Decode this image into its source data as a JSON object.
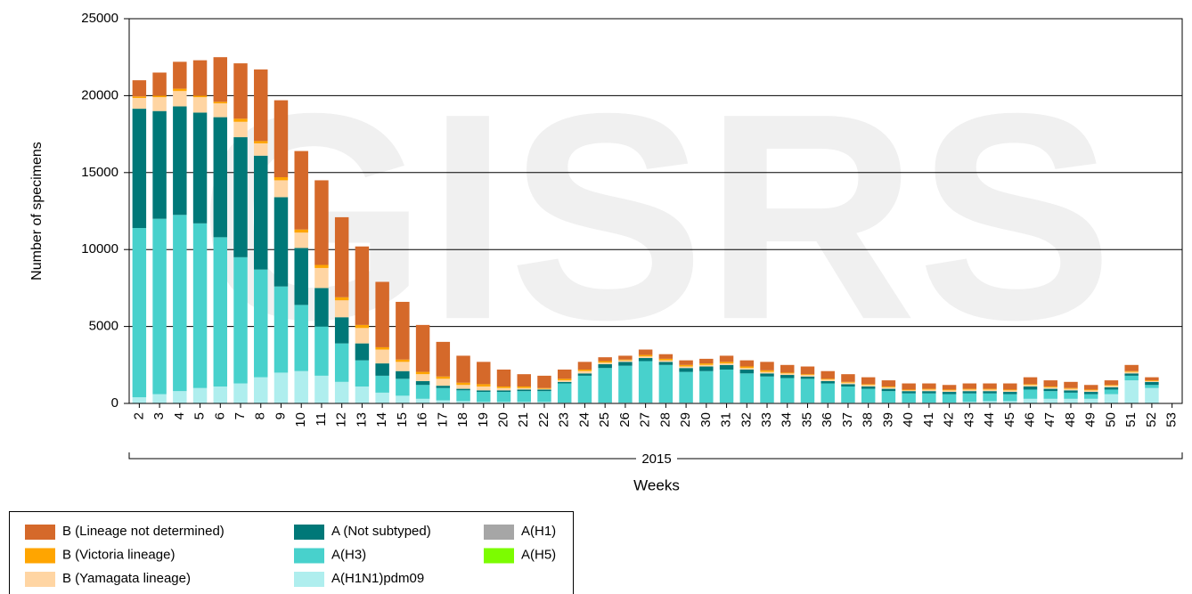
{
  "chart_data": {
    "type": "stacked_bar",
    "watermark": "GISRS",
    "ylabel": "Number of specimens",
    "xlabel": "Weeks",
    "x_group_label": "2015",
    "ylim": [
      0,
      25000
    ],
    "yticks": [
      0,
      5000,
      10000,
      15000,
      20000,
      25000
    ],
    "grid": true,
    "legend": "bottom-left",
    "categories": [
      "2",
      "3",
      "4",
      "5",
      "6",
      "7",
      "8",
      "9",
      "10",
      "11",
      "12",
      "13",
      "14",
      "15",
      "16",
      "17",
      "18",
      "19",
      "20",
      "21",
      "22",
      "23",
      "24",
      "25",
      "26",
      "27",
      "28",
      "29",
      "30",
      "31",
      "32",
      "33",
      "34",
      "35",
      "36",
      "37",
      "38",
      "39",
      "40",
      "41",
      "42",
      "43",
      "44",
      "45",
      "46",
      "47",
      "48",
      "49",
      "50",
      "51",
      "52",
      "53"
    ],
    "series": [
      {
        "name": "B (Lineage not determined)",
        "color": "#d5692a",
        "values": [
          1050,
          1500,
          1750,
          2300,
          2900,
          3600,
          4650,
          5000,
          5100,
          5500,
          5200,
          5100,
          4250,
          3750,
          3050,
          2250,
          1750,
          1450,
          1100,
          800,
          800,
          600,
          500,
          250,
          250,
          350,
          300,
          300,
          300,
          400,
          400,
          550,
          500,
          500,
          500,
          500,
          450,
          400,
          400,
          350,
          300,
          350,
          350,
          400,
          450,
          400,
          400,
          300,
          300,
          400,
          200,
          0
        ]
      },
      {
        "name": "B (Victoria lineage)",
        "color": "#ffa500",
        "values": [
          100,
          100,
          150,
          100,
          100,
          200,
          150,
          200,
          200,
          200,
          200,
          200,
          150,
          150,
          150,
          150,
          150,
          150,
          100,
          100,
          50,
          100,
          100,
          100,
          50,
          100,
          100,
          100,
          100,
          100,
          100,
          100,
          50,
          50,
          50,
          50,
          50,
          50,
          50,
          50,
          50,
          50,
          50,
          50,
          50,
          50,
          50,
          50,
          50,
          50,
          50,
          0
        ]
      },
      {
        "name": "B (Yamagata lineage)",
        "color": "#ffd5a3",
        "values": [
          700,
          900,
          1000,
          1000,
          900,
          1000,
          800,
          1100,
          1000,
          1300,
          1100,
          1000,
          900,
          600,
          450,
          450,
          250,
          250,
          150,
          100,
          50,
          100,
          150,
          100,
          100,
          100,
          100,
          100,
          100,
          100,
          100,
          100,
          100,
          100,
          100,
          100,
          100,
          100,
          50,
          100,
          100,
          100,
          100,
          100,
          100,
          100,
          100,
          100,
          100,
          100,
          50,
          0
        ]
      },
      {
        "name": "A (Not subtyped)",
        "color": "#007878",
        "values": [
          7750,
          7000,
          7050,
          7200,
          7800,
          7800,
          7400,
          5800,
          3700,
          2500,
          1700,
          1100,
          800,
          500,
          250,
          150,
          100,
          100,
          100,
          100,
          100,
          100,
          150,
          250,
          250,
          200,
          200,
          250,
          300,
          300,
          250,
          200,
          200,
          150,
          150,
          150,
          150,
          150,
          150,
          150,
          150,
          150,
          150,
          150,
          200,
          150,
          150,
          150,
          150,
          150,
          200,
          0
        ]
      },
      {
        "name": "A(H3)",
        "color": "#48d1cc",
        "values": [
          11000,
          11400,
          11450,
          10700,
          9700,
          8200,
          7000,
          5600,
          4300,
          3200,
          2500,
          1700,
          1100,
          1100,
          900,
          800,
          700,
          650,
          650,
          700,
          700,
          1250,
          1750,
          2250,
          2400,
          2700,
          2450,
          2000,
          2050,
          2150,
          1900,
          1700,
          1600,
          1550,
          1250,
          1050,
          900,
          750,
          600,
          600,
          550,
          550,
          500,
          450,
          600,
          500,
          400,
          300,
          300,
          300,
          200,
          0
        ]
      },
      {
        "name": "A(H1N1)pdm09",
        "color": "#afeeee",
        "values": [
          400,
          600,
          800,
          1000,
          1100,
          1300,
          1700,
          2000,
          2100,
          1800,
          1400,
          1100,
          700,
          500,
          300,
          200,
          150,
          100,
          100,
          100,
          100,
          50,
          50,
          50,
          50,
          50,
          50,
          50,
          50,
          50,
          50,
          50,
          50,
          50,
          50,
          50,
          50,
          50,
          50,
          50,
          50,
          100,
          150,
          150,
          300,
          300,
          300,
          300,
          600,
          1500,
          1000,
          0
        ]
      },
      {
        "name": "A(H1)",
        "color": "#a6a6a6",
        "values": [
          0,
          0,
          0,
          0,
          0,
          0,
          0,
          0,
          0,
          0,
          0,
          0,
          0,
          0,
          0,
          0,
          0,
          0,
          0,
          0,
          0,
          0,
          0,
          0,
          0,
          0,
          0,
          0,
          0,
          0,
          0,
          0,
          0,
          0,
          0,
          0,
          0,
          0,
          0,
          0,
          0,
          0,
          0,
          0,
          0,
          0,
          0,
          0,
          0,
          0,
          0,
          0
        ]
      },
      {
        "name": "A(H5)",
        "color": "#7cfc00",
        "values": [
          0,
          0,
          0,
          0,
          0,
          0,
          0,
          0,
          0,
          0,
          0,
          0,
          0,
          0,
          0,
          0,
          0,
          0,
          0,
          0,
          0,
          0,
          0,
          0,
          0,
          0,
          0,
          0,
          0,
          0,
          0,
          0,
          0,
          0,
          0,
          0,
          0,
          0,
          0,
          0,
          0,
          0,
          0,
          0,
          0,
          0,
          0,
          0,
          0,
          0,
          0,
          0
        ]
      }
    ]
  }
}
